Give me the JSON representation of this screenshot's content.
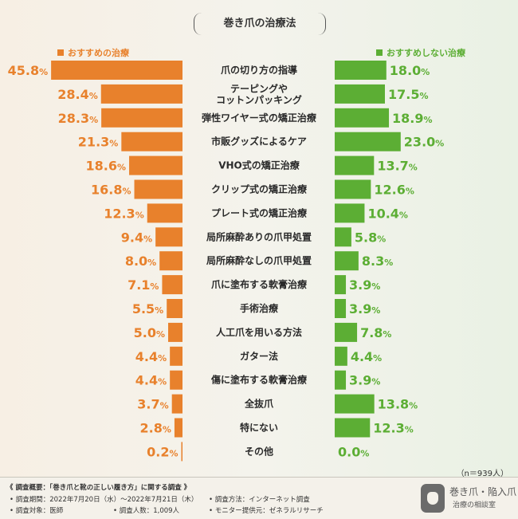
{
  "chart_data": {
    "type": "bar",
    "title": "巻き爪の治療法",
    "categories": [
      "爪の切り方の指導",
      "テーピングや\nコットンパッキング",
      "弾性ワイヤー式の矯正治療",
      "市販グッズによるケア",
      "VHO式の矯正治療",
      "クリップ式の矯正治療",
      "プレート式の矯正治療",
      "局所麻酔ありの爪甲処置",
      "局所麻酔なしの爪甲処置",
      "爪に塗布する軟膏治療",
      "手術治療",
      "人工爪を用いる方法",
      "ガター法",
      "傷に塗布する軟膏治療",
      "全抜爪",
      "特にない",
      "その他"
    ],
    "series": [
      {
        "name": "おすすめの治療",
        "color": "#e8812c",
        "values": [
          45.8,
          28.4,
          28.3,
          21.3,
          18.6,
          16.8,
          12.3,
          9.4,
          8.0,
          7.1,
          5.5,
          5.0,
          4.4,
          4.4,
          3.7,
          2.8,
          0.2
        ]
      },
      {
        "name": "おすすめしない治療",
        "color": "#5cae34",
        "values": [
          18.0,
          17.5,
          18.9,
          23.0,
          13.7,
          12.6,
          10.4,
          5.8,
          8.3,
          3.9,
          3.9,
          7.8,
          4.4,
          3.9,
          13.8,
          12.3,
          0.0
        ]
      }
    ],
    "unit": "%",
    "xlim": [
      0,
      50
    ],
    "grid": false,
    "legend": "top"
  },
  "sample_note": "（n＝939人）",
  "footer": {
    "title": "《 調査概要：「巻き爪と靴の正しい履き方」に関する調査 》",
    "period": "• 調査期間：2022年7月20日（水）～2022年7月21日（木）",
    "method": "• 調査方法：インターネット調査",
    "target": "• 調査対象：医師",
    "count": "• 調査人数：1,009人",
    "provider": "• モニター提供元：ゼネラルリサーチ"
  },
  "logo": {
    "line1": "巻き爪・陥入爪",
    "line2": "治療の相談室"
  }
}
